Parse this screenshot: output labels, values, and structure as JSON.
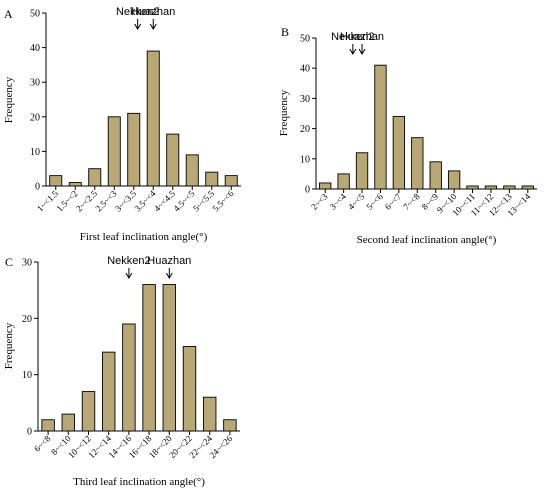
{
  "chart_data": [
    {
      "panel": "A",
      "type": "bar",
      "xlabel": "First leaf inclination angle(°)",
      "ylabel": "Frequency",
      "ylim": [
        0,
        50
      ],
      "yticks": [
        0,
        10,
        20,
        30,
        40,
        50
      ],
      "categories": [
        "1~<1.5",
        "1.5~<2",
        "2~<2.5",
        "2.5~<3",
        "3~<3.5",
        "3.5~<4",
        "4~<4.5",
        "4.5~<5",
        "5~<5.5",
        "5.5~<6"
      ],
      "values": [
        3,
        1,
        5,
        20,
        21,
        39,
        15,
        9,
        4,
        3
      ],
      "annotations": [
        {
          "text": "Nekken2",
          "category_index": 4,
          "arrow_offset": 0.2
        },
        {
          "text": "Huazhan",
          "category_index": 5,
          "arrow_offset": 0.0
        }
      ],
      "bar_color": "#b9a877"
    },
    {
      "panel": "B",
      "type": "bar",
      "xlabel": "Second leaf inclination angle(°)",
      "ylabel": "Frequency",
      "ylim": [
        0,
        50
      ],
      "yticks": [
        0,
        10,
        20,
        30,
        40,
        50
      ],
      "categories": [
        "2~<3",
        "3~<4",
        "4~<5",
        "5~<6",
        "6~<7",
        "7~<8",
        "8~<9",
        "9~<10",
        "10~<11",
        "11~<12",
        "12~<13",
        "13~<14"
      ],
      "values": [
        2,
        5,
        12,
        41,
        24,
        17,
        9,
        6,
        1,
        1,
        1,
        1
      ],
      "annotations": [
        {
          "text": "Nekken2",
          "category_index": 1,
          "arrow_offset": 0.5
        },
        {
          "text": "Huazhan",
          "category_index": 2,
          "arrow_offset": 0.0
        }
      ],
      "bar_color": "#b9a877"
    },
    {
      "panel": "C",
      "type": "bar",
      "xlabel": "Third leaf inclination angle(°)",
      "ylabel": "Frequency",
      "ylim": [
        0,
        30
      ],
      "yticks": [
        0,
        10,
        20,
        30
      ],
      "categories": [
        "6~<8",
        "8~<10",
        "10~<12",
        "12~<14",
        "14~<16",
        "16~<18",
        "18~<20",
        "20~<22",
        "22~<24",
        "24~<26"
      ],
      "values": [
        2,
        3,
        7,
        14,
        19,
        26,
        26,
        15,
        6,
        2
      ],
      "annotations": [
        {
          "text": "Nekken2",
          "category_index": 4,
          "arrow_offset": 0.0
        },
        {
          "text": "Huazhan",
          "category_index": 6,
          "arrow_offset": 0.0
        }
      ],
      "bar_color": "#b9a877"
    }
  ]
}
